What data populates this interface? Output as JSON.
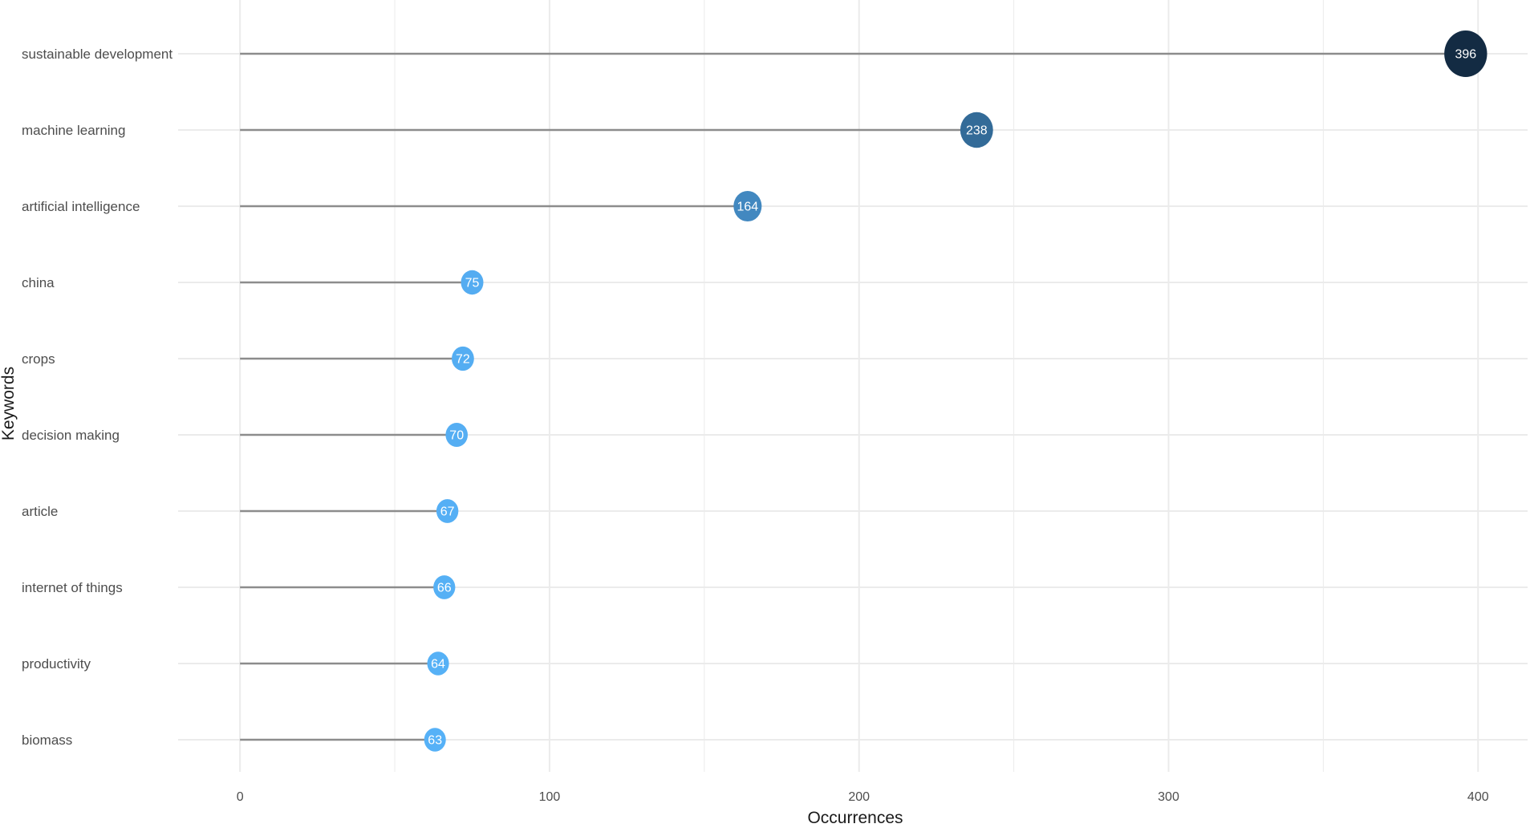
{
  "chart_data": {
    "type": "lollipop",
    "xlabel": "Occurrences",
    "ylabel": "Keywords",
    "xlim": [
      -20,
      416
    ],
    "x_ticks": [
      0,
      100,
      200,
      300,
      400
    ],
    "x_minor_ticks": [
      50,
      150,
      250,
      350
    ],
    "grid": true,
    "categories": [
      "sustainable development",
      "machine learning",
      "artificial intelligence",
      "china",
      "crops",
      "decision making",
      "article",
      "internet of things",
      "productivity",
      "biomass"
    ],
    "values": [
      396,
      238,
      164,
      75,
      72,
      70,
      67,
      66,
      64,
      63
    ],
    "color_scale": {
      "low": "#56B1F7",
      "high": "#132B43",
      "domain": [
        63,
        396
      ]
    },
    "stem_color": "#8c8c8c",
    "grid_color": "#ebebeb"
  }
}
